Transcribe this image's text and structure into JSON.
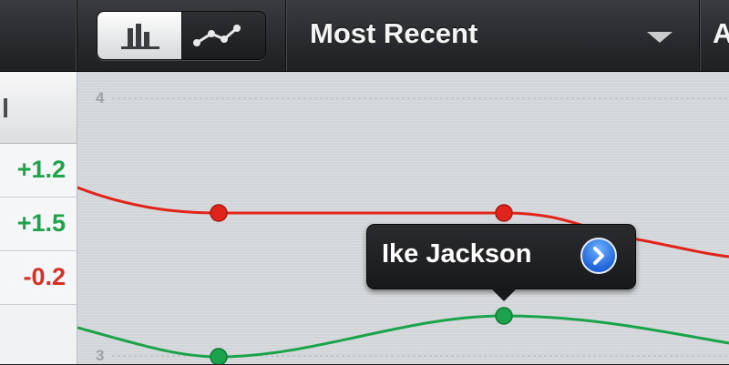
{
  "toolbar": {
    "view_toggle": {
      "bar_icon": "bar-chart-icon",
      "line_icon": "line-chart-icon",
      "selected": "bar"
    },
    "sort_dropdown": {
      "label": "Most Recent",
      "caret_icon": "caret-down-icon"
    },
    "right_partial_label": "A"
  },
  "left_column": {
    "header_text": "ll",
    "rows": [
      {
        "value": "+1.2",
        "status": "positive"
      },
      {
        "value": "+1.5",
        "status": "positive"
      },
      {
        "value": "-0.2",
        "status": "negative"
      }
    ]
  },
  "chart": {
    "y_ticks": [
      "4",
      "3"
    ],
    "colors": {
      "red": "#e0241b",
      "green": "#1aa34a"
    },
    "tooltip": {
      "name": "Ike Jackson",
      "button_icon": "chevron-right-icon"
    }
  }
}
